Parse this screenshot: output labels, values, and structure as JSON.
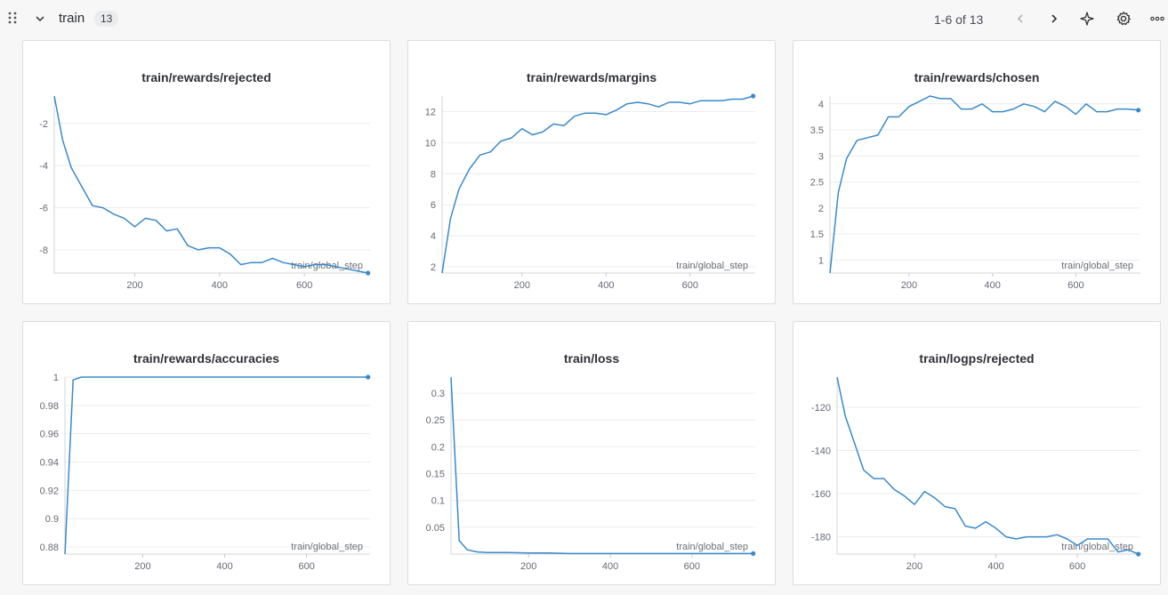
{
  "section": {
    "title": "train",
    "count": "13",
    "pager": "1-6 of 13"
  },
  "icons": [
    "drag-handle-icon",
    "chevron-down-icon",
    "chevron-left-icon",
    "chevron-right-icon",
    "sparkle-icon",
    "gear-icon",
    "more-icon"
  ],
  "colors": {
    "line": "#3a8ac9",
    "grid": "#ececee"
  },
  "chart_data": [
    {
      "type": "line",
      "title": "train/rewards/rejected",
      "xlabel": "train/global_step",
      "ylabel": "",
      "xlim": [
        10,
        755
      ],
      "ylim": [
        -9.1,
        -0.7
      ],
      "xticks": [
        200,
        400,
        600
      ],
      "yticks": [
        -2,
        -4,
        -6,
        -8
      ],
      "x": [
        10,
        30,
        50,
        75,
        100,
        125,
        150,
        175,
        200,
        225,
        250,
        275,
        300,
        325,
        350,
        375,
        400,
        425,
        450,
        475,
        500,
        525,
        550,
        575,
        600,
        625,
        650,
        675,
        700,
        725,
        750
      ],
      "series": [
        {
          "name": "",
          "values": [
            -0.7,
            -2.8,
            -4.1,
            -5.0,
            -5.9,
            -6.0,
            -6.3,
            -6.5,
            -6.9,
            -6.5,
            -6.6,
            -7.1,
            -7.0,
            -7.8,
            -8.0,
            -7.9,
            -7.9,
            -8.2,
            -8.7,
            -8.6,
            -8.6,
            -8.4,
            -8.6,
            -8.7,
            -8.8,
            -8.7,
            -8.7,
            -8.8,
            -8.9,
            -9.0,
            -9.1
          ]
        }
      ]
    },
    {
      "type": "line",
      "title": "train/rewards/margins",
      "xlabel": "train/global_step",
      "ylabel": "",
      "xlim": [
        10,
        755
      ],
      "ylim": [
        1.6,
        13.0
      ],
      "xticks": [
        200,
        400,
        600
      ],
      "yticks": [
        2,
        4,
        6,
        8,
        10,
        12
      ],
      "x": [
        10,
        30,
        50,
        75,
        100,
        125,
        150,
        175,
        200,
        225,
        250,
        275,
        300,
        325,
        350,
        375,
        400,
        425,
        450,
        475,
        500,
        525,
        550,
        575,
        600,
        625,
        650,
        675,
        700,
        725,
        750
      ],
      "series": [
        {
          "name": "",
          "values": [
            1.6,
            5.1,
            7.0,
            8.3,
            9.2,
            9.4,
            10.1,
            10.3,
            10.9,
            10.5,
            10.7,
            11.2,
            11.1,
            11.7,
            11.9,
            11.9,
            11.8,
            12.1,
            12.5,
            12.6,
            12.5,
            12.3,
            12.6,
            12.6,
            12.5,
            12.7,
            12.7,
            12.7,
            12.8,
            12.8,
            13.0
          ]
        }
      ]
    },
    {
      "type": "line",
      "title": "train/rewards/chosen",
      "xlabel": "train/global_step",
      "ylabel": "",
      "xlim": [
        10,
        755
      ],
      "ylim": [
        0.75,
        4.15
      ],
      "xticks": [
        200,
        400,
        600
      ],
      "yticks": [
        1,
        1.5,
        2,
        2.5,
        3,
        3.5,
        4
      ],
      "x": [
        10,
        30,
        50,
        75,
        100,
        125,
        150,
        175,
        200,
        225,
        250,
        275,
        300,
        325,
        350,
        375,
        400,
        425,
        450,
        475,
        500,
        525,
        550,
        575,
        600,
        625,
        650,
        675,
        700,
        725,
        750
      ],
      "series": [
        {
          "name": "",
          "values": [
            0.75,
            2.3,
            2.95,
            3.3,
            3.35,
            3.4,
            3.75,
            3.75,
            3.95,
            4.05,
            4.15,
            4.1,
            4.1,
            3.9,
            3.9,
            4.0,
            3.85,
            3.85,
            3.9,
            4.0,
            3.95,
            3.85,
            4.05,
            3.95,
            3.8,
            4.0,
            3.85,
            3.85,
            3.9,
            3.9,
            3.88
          ]
        }
      ]
    },
    {
      "type": "line",
      "title": "train/rewards/accuracies",
      "xlabel": "train/global_step",
      "ylabel": "",
      "xlim": [
        10,
        755
      ],
      "ylim": [
        0.875,
        1.0
      ],
      "xticks": [
        200,
        400,
        600
      ],
      "yticks": [
        0.88,
        0.9,
        0.92,
        0.94,
        0.96,
        0.98,
        1
      ],
      "x": [
        10,
        30,
        50,
        750
      ],
      "series": [
        {
          "name": "",
          "values": [
            0.875,
            0.998,
            1.0,
            1.0
          ]
        }
      ]
    },
    {
      "type": "line",
      "title": "train/loss",
      "xlabel": "train/global_step",
      "ylabel": "",
      "xlim": [
        10,
        755
      ],
      "ylim": [
        0.0,
        0.33
      ],
      "xticks": [
        200,
        400,
        600
      ],
      "yticks": [
        0.05,
        0.1,
        0.15,
        0.2,
        0.25,
        0.3
      ],
      "x": [
        10,
        30,
        50,
        75,
        100,
        150,
        200,
        250,
        300,
        350,
        400,
        450,
        500,
        550,
        600,
        650,
        700,
        750
      ],
      "series": [
        {
          "name": "",
          "values": [
            0.33,
            0.025,
            0.008,
            0.004,
            0.003,
            0.003,
            0.002,
            0.002,
            0.001,
            0.001,
            0.001,
            0.001,
            0.001,
            0.001,
            0.001,
            0.001,
            0.001,
            0.001
          ]
        }
      ]
    },
    {
      "type": "line",
      "title": "train/logps/rejected",
      "xlabel": "train/global_step",
      "ylabel": "",
      "xlim": [
        10,
        755
      ],
      "ylim": [
        -188,
        -106
      ],
      "xticks": [
        200,
        400,
        600
      ],
      "yticks": [
        -120,
        -140,
        -160,
        -180
      ],
      "x": [
        10,
        30,
        50,
        75,
        100,
        125,
        150,
        175,
        200,
        225,
        250,
        275,
        300,
        325,
        350,
        375,
        400,
        425,
        450,
        475,
        500,
        525,
        550,
        575,
        600,
        625,
        650,
        675,
        700,
        725,
        750
      ],
      "series": [
        {
          "name": "",
          "values": [
            -106,
            -124,
            -135,
            -149,
            -153,
            -153,
            -158,
            -161,
            -165,
            -159,
            -162,
            -166,
            -167,
            -175,
            -176,
            -173,
            -176,
            -180,
            -181,
            -180,
            -180,
            -180,
            -179,
            -181,
            -184,
            -181,
            -181,
            -181,
            -187,
            -186,
            -188
          ]
        }
      ]
    }
  ]
}
